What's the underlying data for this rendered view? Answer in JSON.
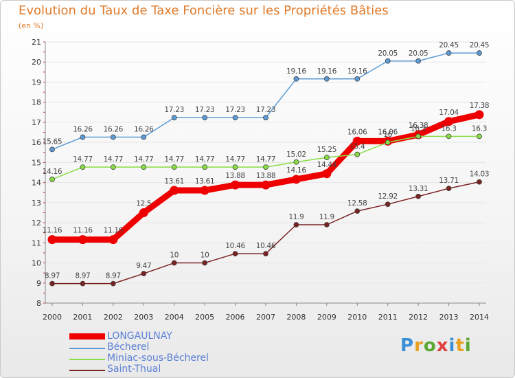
{
  "title": "Evolution du Taux de Taxe Foncière sur les Propriétés Bâties",
  "subtitle": "(en %)",
  "logo_text": "Proxiti",
  "colors": {
    "title": "#e07b2a",
    "LONGAULNAY": "#ee0000",
    "Bécherel": "#5b9bd5",
    "Miniac-sous-Bécherel": "#88dd44",
    "Saint-Thual": "#7a2222",
    "axis_text": "#333333",
    "grid": "#e5e5e5"
  },
  "chart_data": {
    "type": "line",
    "title": "Evolution du Taux de Taxe Foncière sur les Propriétés Bâties",
    "ylabel": "(en %)",
    "xlabel": "",
    "x": [
      2000,
      2001,
      2002,
      2003,
      2004,
      2005,
      2006,
      2007,
      2008,
      2009,
      2010,
      2011,
      2012,
      2013,
      2014
    ],
    "ylim": [
      8,
      21
    ],
    "yticks": [
      8,
      9,
      10,
      11,
      12,
      13,
      14,
      15,
      16,
      17,
      18,
      19,
      20,
      21
    ],
    "legend_position": "bottom-left",
    "series": [
      {
        "name": "LONGAULNAY",
        "values": [
          11.16,
          11.16,
          11.16,
          12.5,
          13.61,
          13.61,
          13.88,
          13.88,
          14.16,
          14.44,
          16.06,
          16.06,
          16.38,
          17.04,
          17.38
        ],
        "labels": [
          "11.16",
          "11.16",
          "11.16",
          "12.5",
          "13.61",
          "13.61",
          "13.88",
          "13.88",
          "14.16",
          "14.44",
          "16.06",
          "16.06",
          "16.38",
          "17.04",
          "17.38"
        ]
      },
      {
        "name": "Bécherel",
        "values": [
          15.65,
          16.26,
          16.26,
          16.26,
          17.23,
          17.23,
          17.23,
          17.23,
          19.16,
          19.16,
          19.16,
          20.05,
          20.05,
          20.45,
          20.45
        ],
        "labels": [
          "15.65",
          "16.26",
          "16.26",
          "16.26",
          "17.23",
          "17.23",
          "17.23",
          "17.23",
          "19.16",
          "19.16",
          "19.16",
          "20.05",
          "20.05",
          "20.45",
          "20.45"
        ]
      },
      {
        "name": "Miniac-sous-Bécherel",
        "values": [
          14.16,
          14.77,
          14.77,
          14.77,
          14.77,
          14.77,
          14.77,
          14.77,
          15.02,
          15.25,
          15.4,
          16.0,
          16.3,
          16.3,
          16.3
        ],
        "labels": [
          "14.16",
          "14.77",
          "14.77",
          "14.77",
          "14.77",
          "14.77",
          "14.77",
          "14.77",
          "15.02",
          "15.25",
          "15.4",
          "16",
          "16.3",
          "16.3",
          "16.3"
        ]
      },
      {
        "name": "Saint-Thual",
        "values": [
          8.97,
          8.97,
          8.97,
          9.47,
          10.0,
          10.0,
          10.46,
          10.46,
          11.9,
          11.9,
          12.58,
          12.92,
          13.31,
          13.71,
          14.03
        ],
        "labels": [
          "8.97",
          "8.97",
          "8.97",
          "9.47",
          "10",
          "10",
          "10.46",
          "10.46",
          "11.9",
          "11.9",
          "12.58",
          "12.92",
          "13.31",
          "13.71",
          "14.03"
        ]
      }
    ]
  }
}
